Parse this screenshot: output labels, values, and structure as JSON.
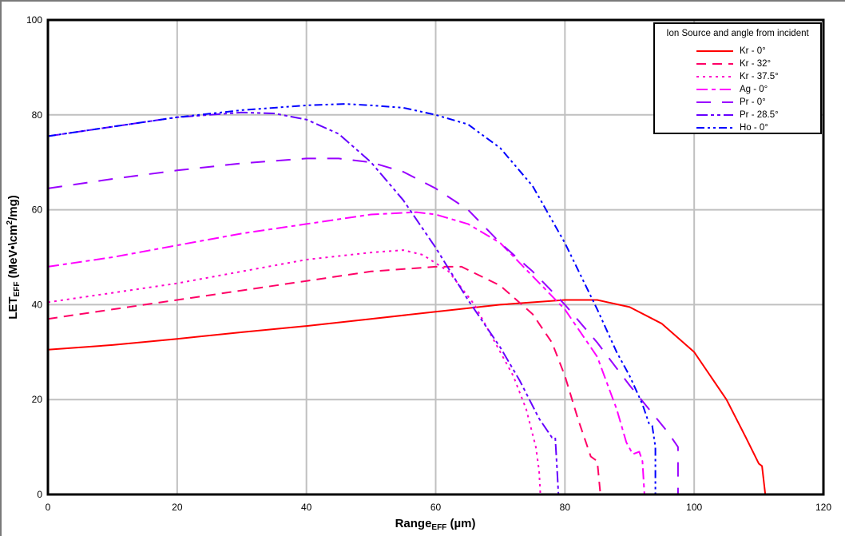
{
  "chart_data": {
    "type": "line",
    "title": "",
    "xlabel": "Range_EFF (µm)",
    "ylabel": "LET_EFF (MeV•\\cm2/mg)",
    "xlim": [
      0,
      120
    ],
    "ylim": [
      0,
      100
    ],
    "xticks": [
      0,
      20,
      40,
      60,
      80,
      100,
      120
    ],
    "yticks": [
      0,
      20,
      40,
      60,
      80,
      100
    ],
    "grid": true,
    "legend_position": "upper right",
    "legend_title": "Ion Source and angle from incident",
    "series": [
      {
        "name": "Kr - 0°",
        "color": "#FF0000",
        "dash": "solid",
        "x": [
          0,
          10,
          20,
          30,
          40,
          50,
          60,
          70,
          80,
          85,
          90,
          95,
          100,
          105,
          108,
          110,
          110.5,
          111
        ],
        "y": [
          30.5,
          31.5,
          32.8,
          34.2,
          35.5,
          37,
          38.5,
          40,
          41,
          41,
          39.5,
          36,
          30,
          20,
          12,
          6.5,
          6,
          0
        ]
      },
      {
        "name": "Kr - 32°",
        "color": "#FF0066",
        "dash": "12,8",
        "x": [
          0,
          10,
          20,
          30,
          40,
          50,
          60,
          64,
          70,
          75,
          78,
          80,
          82,
          84,
          85,
          85.5
        ],
        "y": [
          37,
          39,
          41,
          43,
          45,
          47,
          48,
          48,
          44,
          38,
          32,
          25,
          16,
          8,
          7,
          0
        ]
      },
      {
        "name": "Kr - 37.5°",
        "color": "#FF00CC",
        "dash": "3,5",
        "x": [
          0,
          10,
          20,
          30,
          40,
          50,
          55,
          58,
          62,
          66,
          70,
          72,
          74,
          75.5,
          76,
          76.2
        ],
        "y": [
          40.5,
          42.5,
          44.5,
          47,
          49.5,
          51,
          51.5,
          50.5,
          47,
          40,
          30,
          25,
          18,
          10,
          5,
          0
        ]
      },
      {
        "name": "Ag - 0°",
        "color": "#FF00FF",
        "dash": "14,5,5,5",
        "x": [
          0,
          10,
          20,
          30,
          40,
          50,
          57,
          60,
          65,
          70,
          75,
          80,
          85,
          88,
          89.5,
          90.5,
          91.5,
          92,
          92.3
        ],
        "y": [
          48,
          50,
          52.5,
          55,
          57,
          59,
          59.5,
          59,
          57,
          53,
          46,
          39,
          29,
          18,
          11,
          8.5,
          9,
          7,
          0
        ]
      },
      {
        "name": "Pr - 0°",
        "color": "#9900FF",
        "dash": "18,14",
        "x": [
          0,
          10,
          20,
          30,
          40,
          45,
          50,
          55,
          60,
          65,
          70,
          75,
          80,
          85,
          90,
          93,
          96,
          97.5,
          97.5
        ],
        "y": [
          64.5,
          66.5,
          68.3,
          69.8,
          70.8,
          70.8,
          70,
          68,
          64.5,
          60,
          53,
          47,
          40,
          32,
          23,
          18,
          13,
          10,
          0
        ]
      },
      {
        "name": "Pr - 28.5°",
        "color": "#6600FF",
        "dash": "14,4,4,4,4,4",
        "x": [
          0,
          10,
          20,
          30,
          35,
          40,
          45,
          50,
          55,
          60,
          65,
          70,
          73,
          76,
          78,
          78.5,
          78.8,
          79
        ],
        "y": [
          75.5,
          77.5,
          79.5,
          80.5,
          80.3,
          79,
          76,
          70,
          62,
          52,
          41,
          31,
          24,
          16,
          12,
          12,
          5,
          0
        ]
      },
      {
        "name": "Ho - 0°",
        "color": "#0000FF",
        "dash": "10,4,3,4,3,4",
        "x": [
          0,
          10,
          20,
          30,
          40,
          46,
          50,
          55,
          60,
          65,
          70,
          75,
          80,
          85,
          88,
          90,
          92,
          93,
          93.5,
          94,
          94
        ],
        "y": [
          75.5,
          77.5,
          79.5,
          81,
          82,
          82.3,
          82,
          81.5,
          80,
          78,
          73,
          65,
          53,
          39,
          30,
          25,
          19,
          15,
          14.5,
          10,
          0
        ]
      }
    ]
  },
  "legend": {
    "title": "Ion Source and angle from incident",
    "items": [
      "Kr - 0°",
      "Kr - 32°",
      "Kr - 37.5°",
      "Ag - 0°",
      "Pr - 0°",
      "Pr - 28.5°",
      "Ho - 0°"
    ]
  },
  "axes": {
    "x_label_main": "Range",
    "x_label_sub": "EFF",
    "x_label_unit": " (µm)",
    "y_label_main": "LET",
    "y_label_sub": "EFF",
    "y_label_unit": " (MeV•\\cm",
    "y_label_sup": "2",
    "y_label_end": "/mg)"
  }
}
